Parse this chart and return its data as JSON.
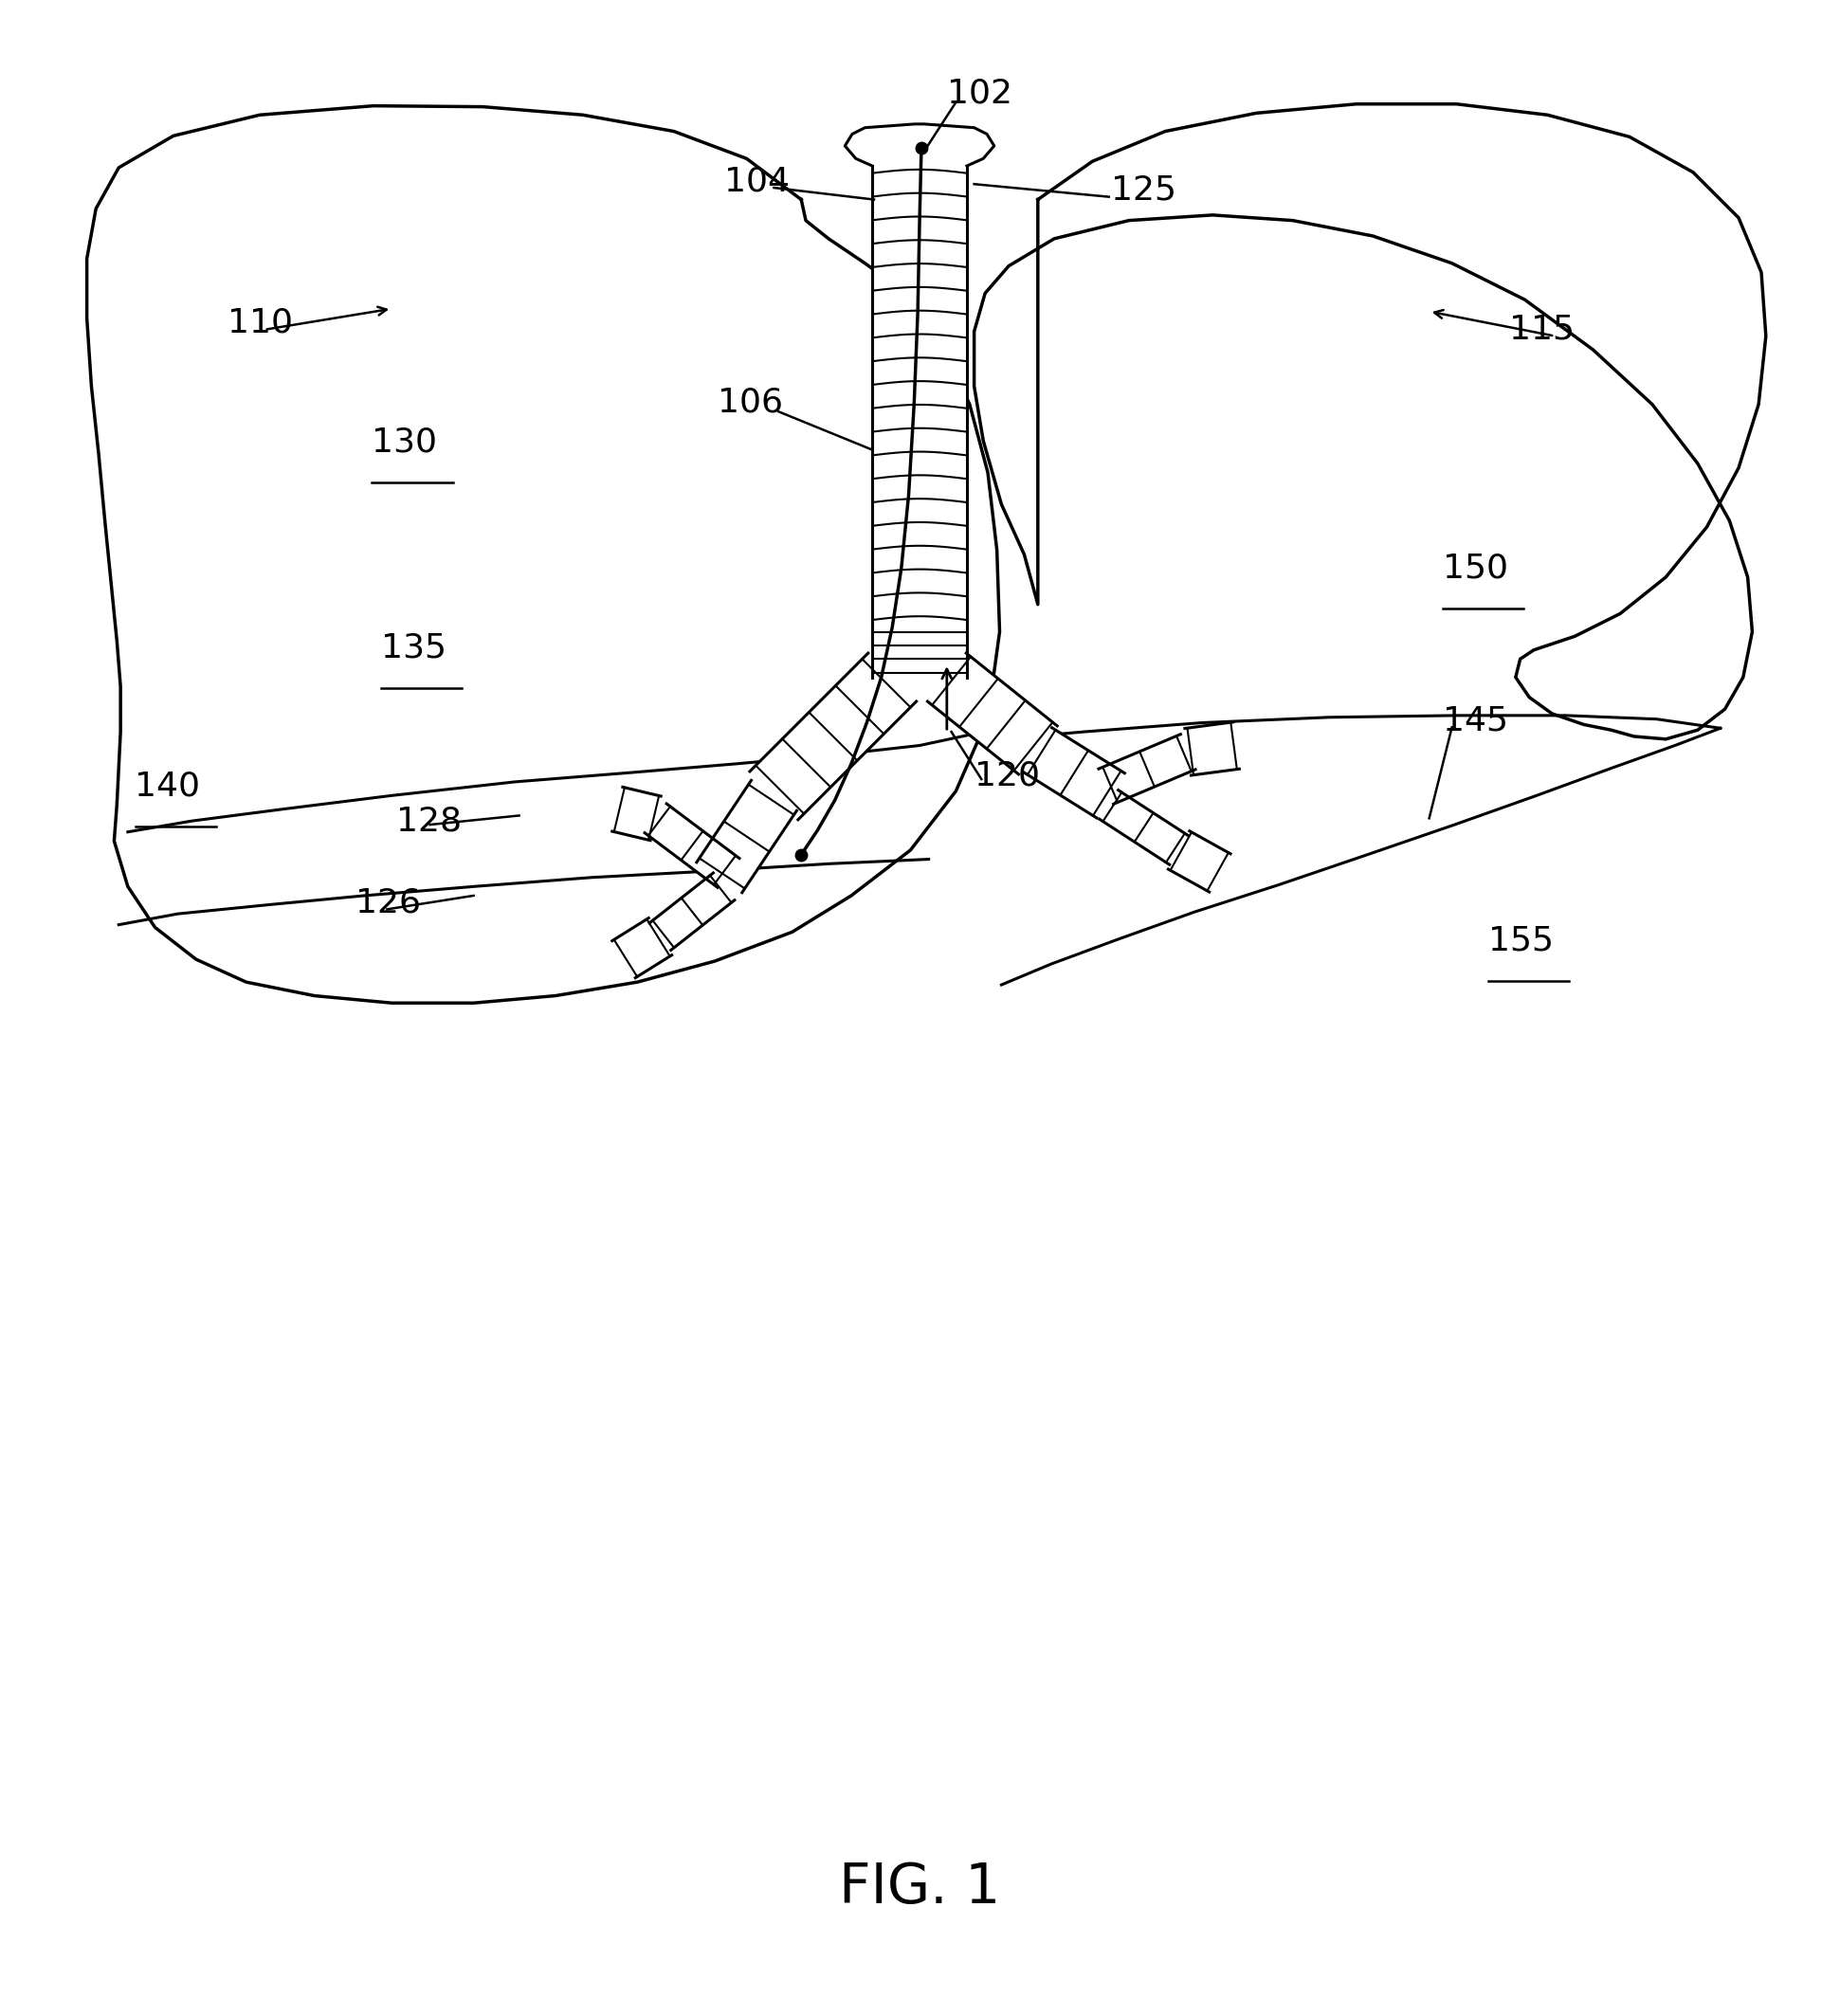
{
  "title": "FIG. 1",
  "title_fontsize": 42,
  "bg": "#ffffff",
  "lw": 2.2,
  "fig_width": 19.41,
  "fig_height": 21.27,
  "label_fontsize": 26,
  "underlined_labels": [
    "130",
    "135",
    "140",
    "150",
    "155"
  ]
}
